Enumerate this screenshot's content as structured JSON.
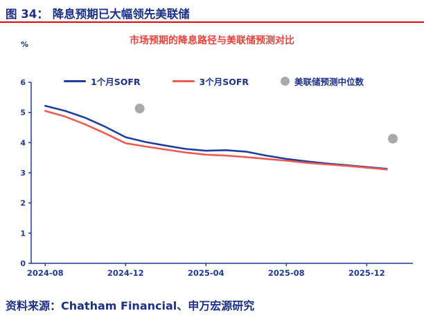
{
  "figure": {
    "label": "图 34：",
    "title": "降息预期已大幅领先美联储"
  },
  "source": "资料来源：Chatham Financial、申万宏源研究",
  "colors": {
    "navy": "#1b3188",
    "rule-red": "#e60000",
    "title-red": "#e6453c"
  },
  "chart_data": {
    "type": "line",
    "title": "市场预期的降息路径与美联储预测对比",
    "xlabel": "",
    "ylabel": "%",
    "ylim": [
      0,
      6
    ],
    "yticks": [
      0,
      1,
      2,
      3,
      4,
      5,
      6
    ],
    "xlim": [
      -0.7,
      18.3
    ],
    "xticks": [
      0,
      4,
      8,
      12,
      16
    ],
    "x_tick_labels": [
      "2024-08",
      "2024-12",
      "2025-04",
      "2025-08",
      "2025-12"
    ],
    "x_unit": "months since 2024-08",
    "grid": false,
    "legend_position": "top",
    "axis_color": "#1f3a93",
    "series": [
      {
        "name": "1个月SOFR",
        "type": "line",
        "color": "#1e3d9e",
        "x": [
          0,
          1,
          2,
          3,
          4,
          5,
          6,
          7,
          8,
          9,
          10,
          11,
          12,
          13,
          14,
          15,
          16,
          17
        ],
        "values": [
          5.22,
          5.05,
          4.82,
          4.52,
          4.18,
          4.02,
          3.9,
          3.79,
          3.73,
          3.75,
          3.7,
          3.57,
          3.46,
          3.38,
          3.31,
          3.25,
          3.19,
          3.13
        ]
      },
      {
        "name": "3个月SOFR",
        "type": "line",
        "color": "#ec5a52",
        "x": [
          0,
          1,
          2,
          3,
          4,
          5,
          6,
          7,
          8,
          9,
          10,
          11,
          12,
          13,
          14,
          15,
          16,
          17
        ],
        "values": [
          5.05,
          4.86,
          4.6,
          4.3,
          3.98,
          3.87,
          3.77,
          3.67,
          3.6,
          3.57,
          3.52,
          3.46,
          3.4,
          3.33,
          3.28,
          3.23,
          3.17,
          3.11
        ]
      },
      {
        "name": "美联储预测中位数",
        "type": "scatter",
        "color": "#a9a9a9",
        "x": [
          4.7,
          17.3
        ],
        "values": [
          5.13,
          4.13
        ]
      }
    ]
  }
}
